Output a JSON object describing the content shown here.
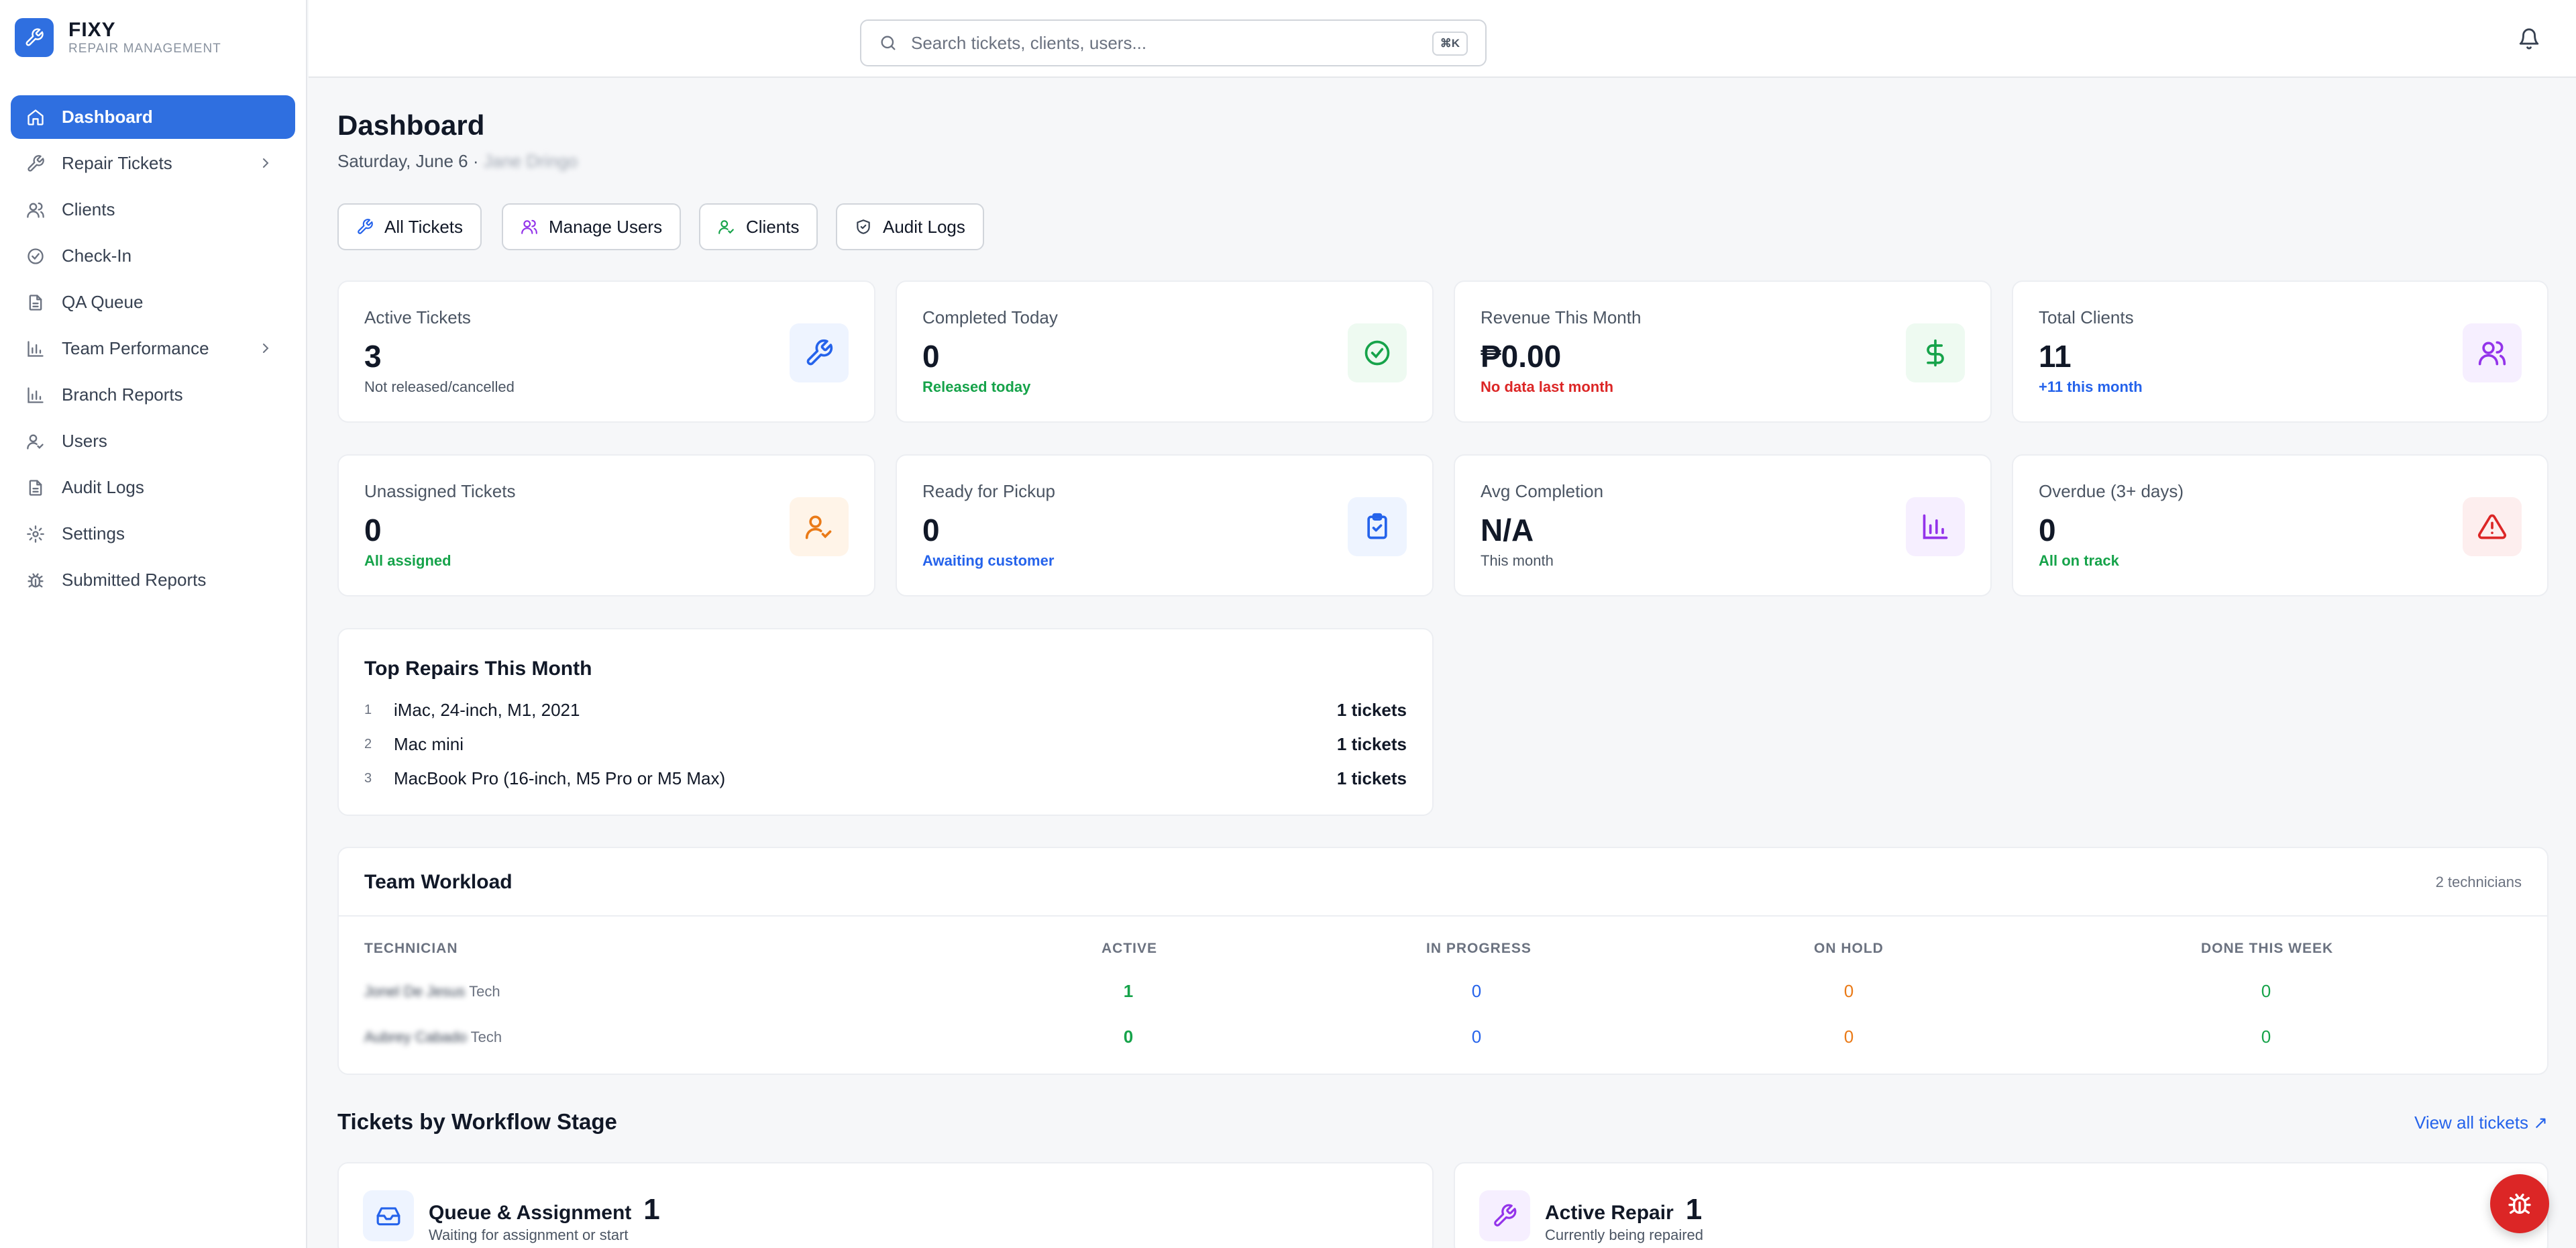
{
  "brand": {
    "name": "FIXY",
    "subtitle": "REPAIR MANAGEMENT"
  },
  "nav": [
    {
      "label": "Dashboard",
      "icon": "home-icon",
      "active": true
    },
    {
      "label": "Repair Tickets",
      "icon": "wrench-icon",
      "chevron": true
    },
    {
      "label": "Clients",
      "icon": "users-icon"
    },
    {
      "label": "Check-In",
      "icon": "check-circle-icon"
    },
    {
      "label": "QA Queue",
      "icon": "document-icon"
    },
    {
      "label": "Team Performance",
      "icon": "bar-chart-icon",
      "chevron": true
    },
    {
      "label": "Branch Reports",
      "icon": "bar-chart-icon"
    },
    {
      "label": "Users",
      "icon": "user-check-icon"
    },
    {
      "label": "Audit Logs",
      "icon": "document-icon"
    },
    {
      "label": "Settings",
      "icon": "gear-icon"
    },
    {
      "label": "Submitted Reports",
      "icon": "bug-icon"
    }
  ],
  "search": {
    "placeholder": "Search tickets, clients, users...",
    "shortcut": "⌘K"
  },
  "page": {
    "title": "Dashboard",
    "date": "Saturday, June 6 ·",
    "user_blurred": "Jane Dringo"
  },
  "quick_actions": [
    {
      "label": "All Tickets",
      "icon": "wrench-icon"
    },
    {
      "label": "Manage Users",
      "icon": "users-icon"
    },
    {
      "label": "Clients",
      "icon": "user-check-icon"
    },
    {
      "label": "Audit Logs",
      "icon": "shield-icon"
    }
  ],
  "stats": [
    {
      "label": "Active Tickets",
      "value": "3",
      "foot": "Not released/cancelled",
      "foot_color": "gray",
      "icon": "wrench-icon",
      "icon_color": "#2563eb",
      "icon_bg": "#eef4ff"
    },
    {
      "label": "Completed Today",
      "value": "0",
      "foot": "Released today",
      "foot_color": "green",
      "icon": "check-circle-icon",
      "icon_color": "#16a34a",
      "icon_bg": "#eefaf1"
    },
    {
      "label": "Revenue This Month",
      "value": "₱0.00",
      "foot": "No data last month",
      "foot_color": "red",
      "icon": "dollar-icon",
      "icon_color": "#16a34a",
      "icon_bg": "#eefaf1"
    },
    {
      "label": "Total Clients",
      "value": "11",
      "foot": "+11 this month",
      "foot_color": "blue",
      "icon": "users-icon",
      "icon_color": "#9333ea",
      "icon_bg": "#f6efff"
    },
    {
      "label": "Unassigned Tickets",
      "value": "0",
      "foot": "All assigned",
      "foot_color": "green",
      "icon": "user-check-icon",
      "icon_color": "#ea7a17",
      "icon_bg": "#fff4e8"
    },
    {
      "label": "Ready for Pickup",
      "value": "0",
      "foot": "Awaiting customer",
      "foot_color": "blue",
      "icon": "clipboard-check-icon",
      "icon_color": "#2563eb",
      "icon_bg": "#eef4ff"
    },
    {
      "label": "Avg Completion",
      "value": "N/A",
      "foot": "This month",
      "foot_color": "gray",
      "icon": "bar-chart-icon",
      "icon_color": "#9333ea",
      "icon_bg": "#f6efff"
    },
    {
      "label": "Overdue (3+ days)",
      "value": "0",
      "foot": "All on track",
      "foot_color": "green",
      "icon": "alert-triangle-icon",
      "icon_color": "#dc2626",
      "icon_bg": "#fdeeee"
    }
  ],
  "top_repairs": {
    "title": "Top Repairs This Month",
    "items": [
      {
        "rank": "1",
        "name": "iMac, 24-inch, M1, 2021",
        "count": "1 tickets"
      },
      {
        "rank": "2",
        "name": "Mac mini",
        "count": "1 tickets"
      },
      {
        "rank": "3",
        "name": "MacBook Pro (16-inch, M5 Pro or M5 Max)",
        "count": "1 tickets"
      }
    ]
  },
  "workload": {
    "title": "Team Workload",
    "count_label": "2 technicians",
    "columns": [
      "TECHNICIAN",
      "ACTIVE",
      "IN PROGRESS",
      "ON HOLD",
      "DONE THIS WEEK"
    ],
    "rows": [
      {
        "name": "Jonel De Jesus",
        "role": "Tech",
        "active": "1",
        "in_progress": "0",
        "on_hold": "0",
        "done": "0"
      },
      {
        "name": "Aubrey Cabado",
        "role": "Tech",
        "active": "0",
        "in_progress": "0",
        "on_hold": "0",
        "done": "0"
      }
    ]
  },
  "workflow": {
    "title": "Tickets by Workflow Stage",
    "link": "View all tickets ↗",
    "stages": [
      {
        "name": "Queue & Assignment",
        "count": "1",
        "desc": "Waiting for assignment or start",
        "icon": "inbox-icon"
      },
      {
        "name": "Active Repair",
        "count": "1",
        "desc": "Currently being repaired",
        "icon": "wrench-icon"
      }
    ]
  },
  "colors": {
    "accent": "#2f6fe0",
    "green": "#16a34a",
    "red": "#dc2626",
    "blue": "#2563eb",
    "orange": "#ea7a17",
    "purple": "#9333ea"
  }
}
